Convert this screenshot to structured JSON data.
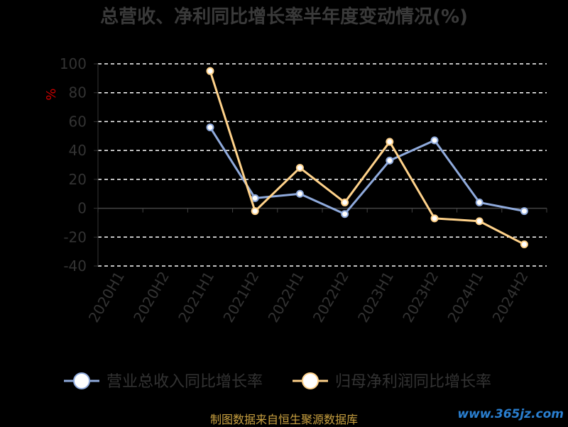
{
  "chart_data": {
    "type": "line",
    "title": "总营收、净利同比增长率半年度变动情况(%)",
    "ylabel": "%",
    "ylim": [
      -40,
      100
    ],
    "yticks": [
      100,
      80,
      60,
      40,
      20,
      0,
      -20,
      -40
    ],
    "categories": [
      "2020H1",
      "2020H2",
      "2021H1",
      "2021H2",
      "2022H1",
      "2022H2",
      "2023H1",
      "2023H2",
      "2024H1",
      "2024H2"
    ],
    "grid": true,
    "legend": "bottom",
    "series": [
      {
        "name": "营业总收入同比增长率",
        "color": "#8faadc",
        "values": [
          null,
          null,
          56,
          7,
          10,
          -4,
          33,
          47,
          4,
          -2
        ]
      },
      {
        "name": "归母净利润同比增长率",
        "color": "#ffd28a",
        "values": [
          null,
          null,
          95,
          -2,
          28,
          4,
          46,
          -7,
          -9,
          -25
        ]
      }
    ]
  },
  "source_text": "制图数据来自恒生聚源数据库",
  "watermark": "www.365jz.com"
}
